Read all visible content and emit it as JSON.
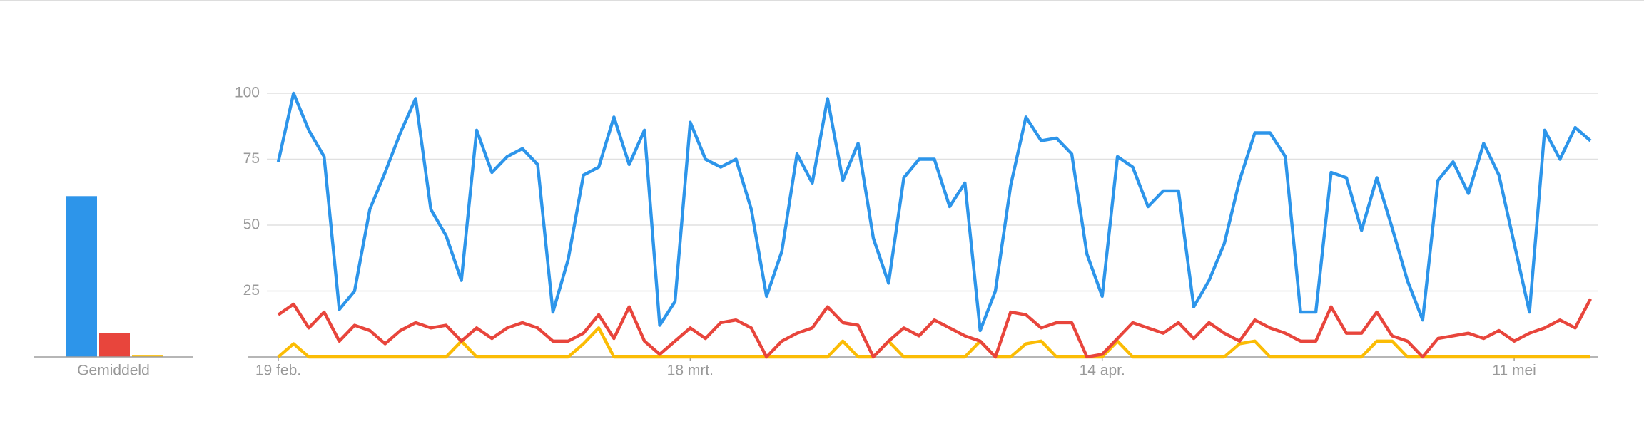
{
  "chart_data": [
    {
      "type": "bar",
      "categories": [
        "Gemiddeld"
      ],
      "ylim": [
        0,
        100
      ],
      "series": [
        {
          "color": "#2d95ea",
          "values": [
            61
          ]
        },
        {
          "color": "#e8453c",
          "values": [
            9
          ]
        },
        {
          "color": "#fbbc05",
          "values": [
            0.5
          ]
        }
      ]
    },
    {
      "type": "line",
      "ylim": [
        0,
        100
      ],
      "yticks": [
        25,
        50,
        75,
        100
      ],
      "grid": true,
      "categories": [
        "19 feb.",
        null,
        null,
        null,
        null,
        null,
        null,
        null,
        null,
        null,
        null,
        null,
        null,
        null,
        null,
        null,
        null,
        null,
        null,
        null,
        null,
        null,
        null,
        null,
        null,
        null,
        null,
        "18 mrt.",
        null,
        null,
        null,
        null,
        null,
        null,
        null,
        null,
        null,
        null,
        null,
        null,
        null,
        null,
        null,
        null,
        null,
        null,
        null,
        null,
        null,
        null,
        null,
        null,
        null,
        null,
        "14 apr.",
        null,
        null,
        null,
        null,
        null,
        null,
        null,
        null,
        null,
        null,
        null,
        null,
        null,
        null,
        null,
        null,
        null,
        null,
        null,
        null,
        null,
        null,
        null,
        null,
        null,
        null,
        "11 mei",
        null,
        null,
        null,
        null,
        null
      ],
      "series": [
        {
          "color": "#2d95ea",
          "values": [
            74,
            100,
            86,
            76,
            18,
            25,
            56,
            70,
            85,
            98,
            56,
            46,
            29,
            86,
            70,
            76,
            79,
            73,
            17,
            37,
            69,
            72,
            91,
            73,
            86,
            12,
            21,
            89,
            75,
            72,
            75,
            56,
            23,
            40,
            77,
            66,
            98,
            67,
            81,
            45,
            28,
            68,
            75,
            75,
            57,
            66,
            10,
            25,
            65,
            91,
            82,
            83,
            77,
            39,
            23,
            76,
            72,
            57,
            63,
            63,
            19,
            29,
            43,
            67,
            85,
            85,
            76,
            17,
            17,
            70,
            68,
            48,
            68,
            49,
            29,
            14,
            67,
            74,
            62,
            81,
            69,
            43,
            17,
            86,
            75,
            87,
            82
          ]
        },
        {
          "color": "#e8453c",
          "values": [
            16,
            20,
            11,
            17,
            6,
            12,
            10,
            5,
            10,
            13,
            11,
            12,
            6,
            11,
            7,
            11,
            13,
            11,
            6,
            6,
            9,
            16,
            7,
            19,
            6,
            1,
            6,
            11,
            7,
            13,
            14,
            11,
            0,
            6,
            9,
            11,
            19,
            13,
            12,
            0,
            6,
            11,
            8,
            14,
            11,
            8,
            6,
            0,
            17,
            16,
            11,
            13,
            13,
            0,
            1,
            7,
            13,
            11,
            9,
            13,
            7,
            13,
            9,
            6,
            14,
            11,
            9,
            6,
            6,
            19,
            9,
            9,
            17,
            8,
            6,
            0,
            7,
            8,
            9,
            7,
            10,
            6,
            9,
            11,
            14,
            11,
            22
          ]
        },
        {
          "color": "#fbbc05",
          "values": [
            0,
            5,
            0,
            0,
            0,
            0,
            0,
            0,
            0,
            0,
            0,
            0,
            6,
            0,
            0,
            0,
            0,
            0,
            0,
            0,
            5,
            11,
            0,
            0,
            0,
            0,
            0,
            0,
            0,
            0,
            0,
            0,
            0,
            0,
            0,
            0,
            0,
            6,
            0,
            0,
            6,
            0,
            0,
            0,
            0,
            0,
            6,
            0,
            0,
            5,
            6,
            0,
            0,
            0,
            0,
            6,
            0,
            0,
            0,
            0,
            0,
            0,
            0,
            5,
            6,
            0,
            0,
            0,
            0,
            0,
            0,
            0,
            6,
            6,
            0,
            0,
            0,
            0,
            0,
            0,
            0,
            0,
            0,
            0,
            0,
            0,
            0
          ]
        }
      ]
    }
  ]
}
